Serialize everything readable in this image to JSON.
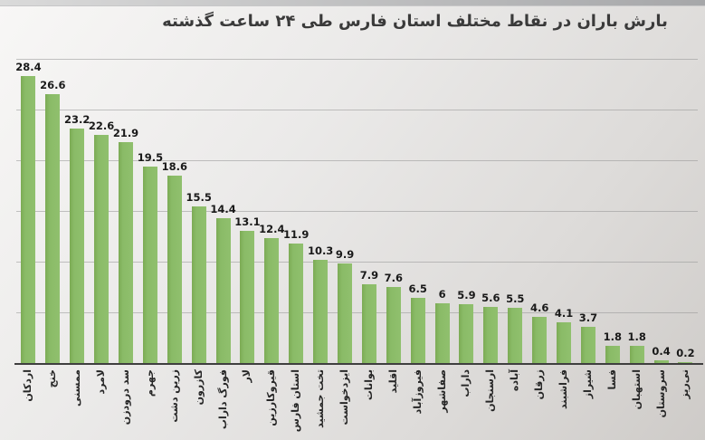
{
  "chart_data": {
    "type": "bar",
    "title": "بارش باران در نقاط مختلف استان فارس طی ۲۴ ساعت گذشته",
    "categories": [
      "اردکان",
      "خنج",
      "ممسنی",
      "لامرد",
      "سد درودزن",
      "جهرم",
      "زرین دشت",
      "کازرون",
      "فورگ داراب",
      "لار",
      "قیروکارزین",
      "استان فارس",
      "تخت جمشید",
      "ایزدخواست",
      "بوانات",
      "اقلید",
      "فیروزآباد",
      "صفاشهر",
      "داراب",
      "ارسنجان",
      "آباده",
      "زرقان",
      "فراشبند",
      "شیراز",
      "فسا",
      "استهبان",
      "سروستان",
      "نی‌ریز"
    ],
    "values": [
      28.4,
      26.6,
      23.2,
      22.6,
      21.9,
      19.5,
      18.6,
      15.5,
      14.4,
      13.1,
      12.4,
      11.9,
      10.3,
      9.9,
      7.9,
      7.6,
      6.5,
      6,
      5.9,
      5.6,
      5.5,
      4.6,
      4.1,
      3.7,
      1.8,
      1.8,
      0.4,
      0.2
    ],
    "xlabel": "",
    "ylabel": "",
    "ylim": [
      0,
      30
    ],
    "gridline_step": 5,
    "grid": true,
    "legend": "none",
    "bar_color": "#8abb67",
    "axis_line_color": "#3f3f3f",
    "value_labels_shown": true,
    "y_axis_labels_shown": false,
    "category_label_rotation_deg": -90
  }
}
